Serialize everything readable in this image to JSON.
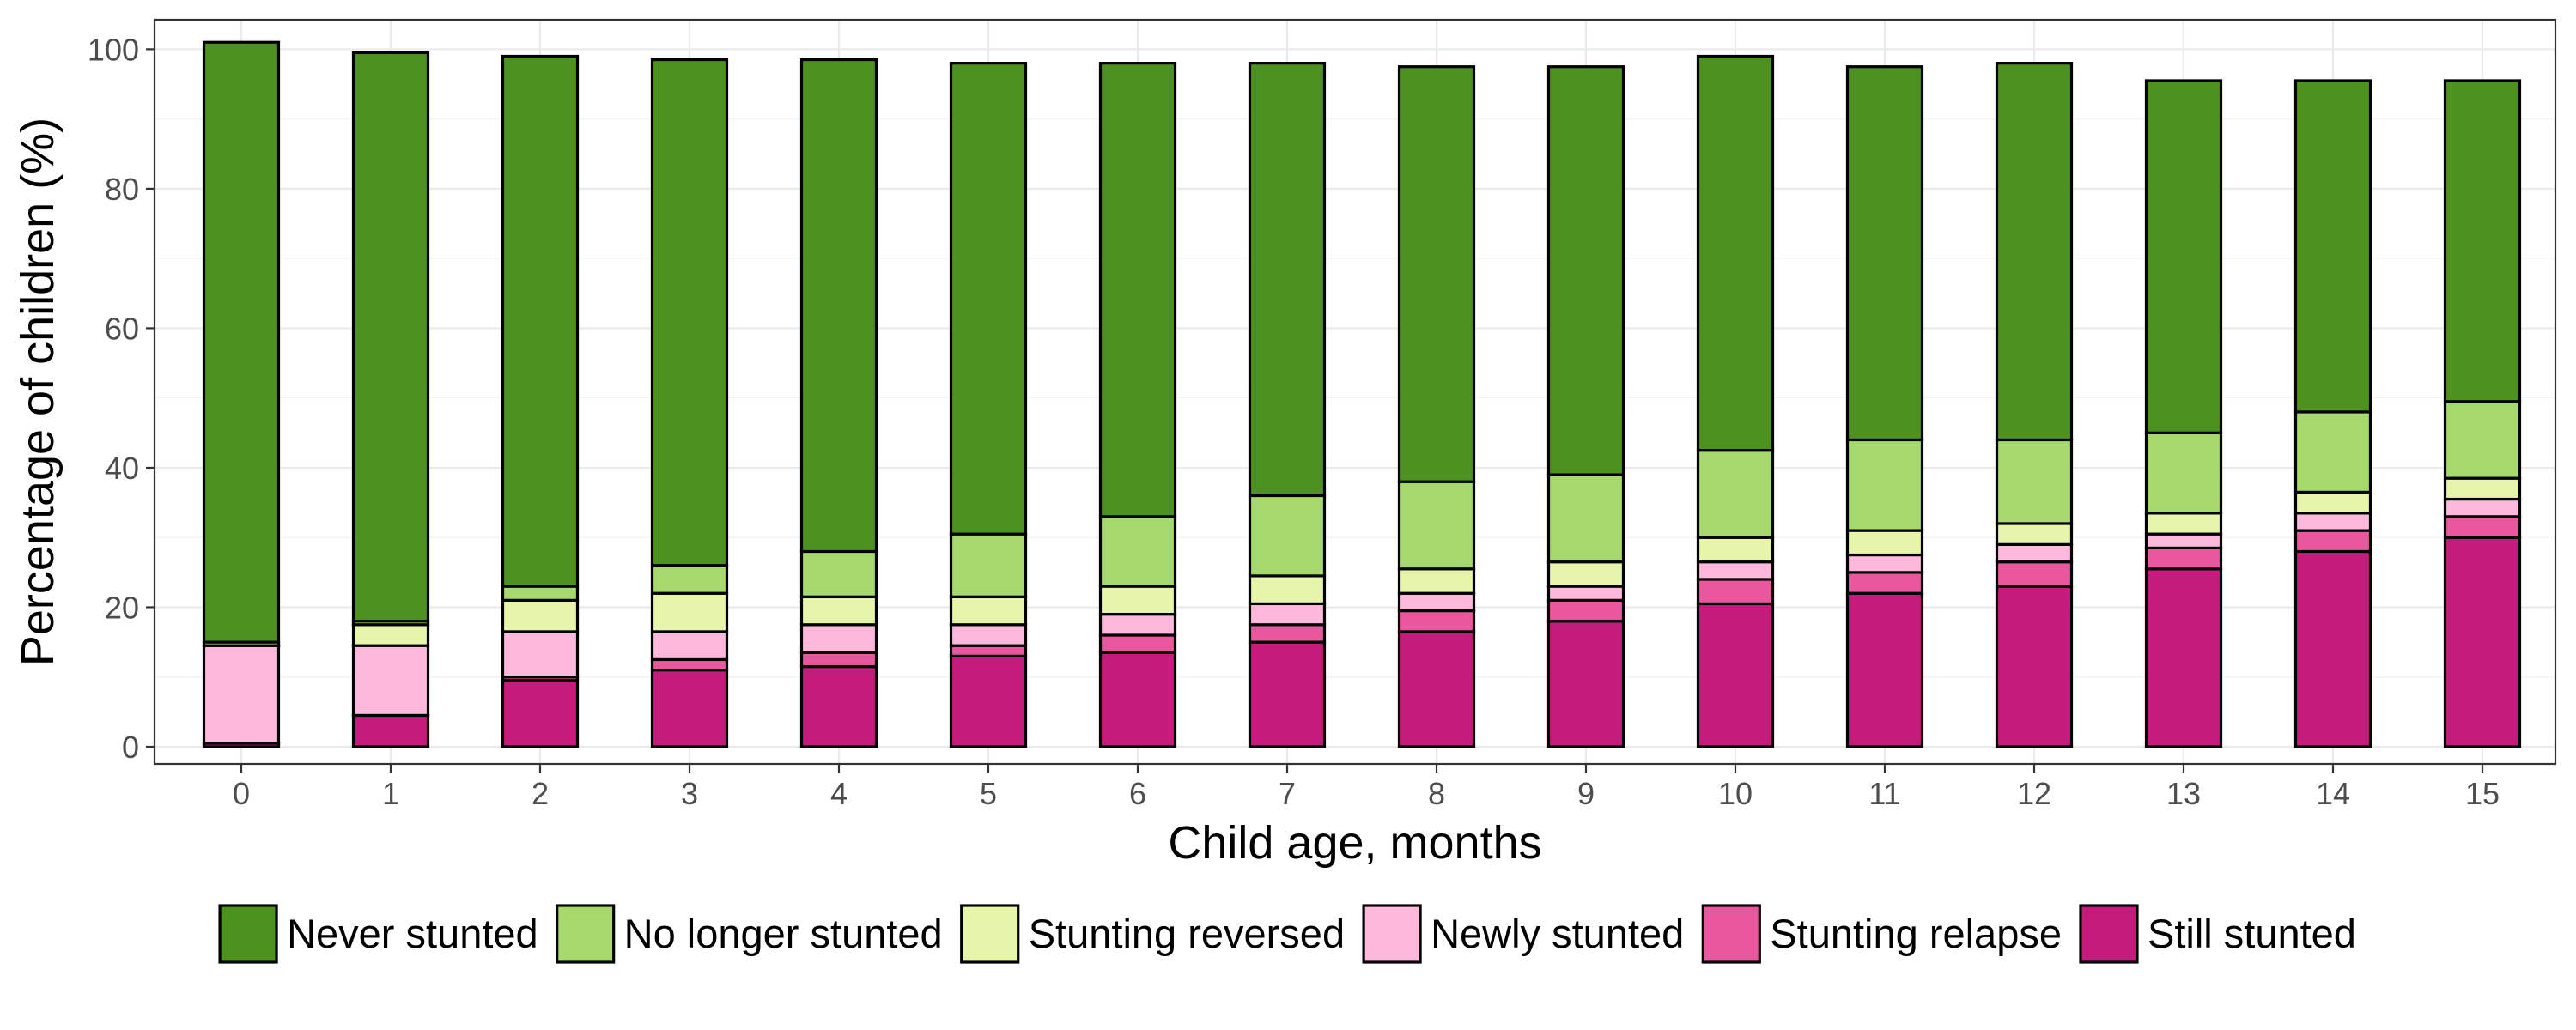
{
  "chart_data": {
    "type": "bar",
    "stacked": true,
    "title": "",
    "xlabel": "Child age, months",
    "ylabel": "Percentage of children (%)",
    "ylim": [
      0,
      103
    ],
    "yticks": [
      0,
      20,
      40,
      60,
      80,
      100
    ],
    "grid": true,
    "legend_position": "bottom",
    "categories": [
      "0",
      "1",
      "2",
      "3",
      "4",
      "5",
      "6",
      "7",
      "8",
      "9",
      "10",
      "11",
      "12",
      "13",
      "14",
      "15"
    ],
    "series": [
      {
        "name": "Still stunted",
        "color": "#c51b7d",
        "values": [
          0.5,
          4.5,
          9.5,
          11.0,
          11.5,
          13.0,
          13.5,
          15.0,
          16.5,
          18.0,
          20.5,
          22.0,
          23.0,
          25.5,
          28.0,
          30.0
        ]
      },
      {
        "name": "Stunting relapse",
        "color": "#e9589e",
        "values": [
          0,
          0,
          0.5,
          1.5,
          2.0,
          1.5,
          2.5,
          2.5,
          3.0,
          3.0,
          3.5,
          3.0,
          3.5,
          3.0,
          3.0,
          3.0
        ]
      },
      {
        "name": "Newly stunted",
        "color": "#fdb9dc",
        "values": [
          14.0,
          10.0,
          6.5,
          4.0,
          4.0,
          3.0,
          3.0,
          3.0,
          2.5,
          2.0,
          2.5,
          2.5,
          2.5,
          2.0,
          2.5,
          2.5
        ]
      },
      {
        "name": "Stunting reversed",
        "color": "#e6f5a9",
        "values": [
          0,
          3.0,
          4.5,
          5.5,
          4.0,
          4.0,
          4.0,
          4.0,
          3.5,
          3.5,
          3.5,
          3.5,
          3.0,
          3.0,
          3.0,
          3.0
        ]
      },
      {
        "name": "No longer stunted",
        "color": "#a5d86d",
        "values": [
          0.5,
          0.5,
          2.0,
          4.0,
          6.5,
          9.0,
          10.0,
          11.5,
          12.5,
          12.5,
          12.5,
          13.0,
          12.0,
          11.5,
          11.5,
          11.0
        ]
      },
      {
        "name": "Never stunted",
        "color": "#4d9221",
        "values": [
          86.0,
          81.5,
          76.0,
          72.5,
          70.5,
          67.5,
          65.0,
          62.0,
          59.5,
          58.5,
          56.5,
          53.5,
          54.0,
          50.5,
          47.5,
          46.0
        ]
      }
    ],
    "legend_order": [
      "Never stunted",
      "No longer stunted",
      "Stunting reversed",
      "Newly stunted",
      "Stunting relapse",
      "Still stunted"
    ]
  }
}
